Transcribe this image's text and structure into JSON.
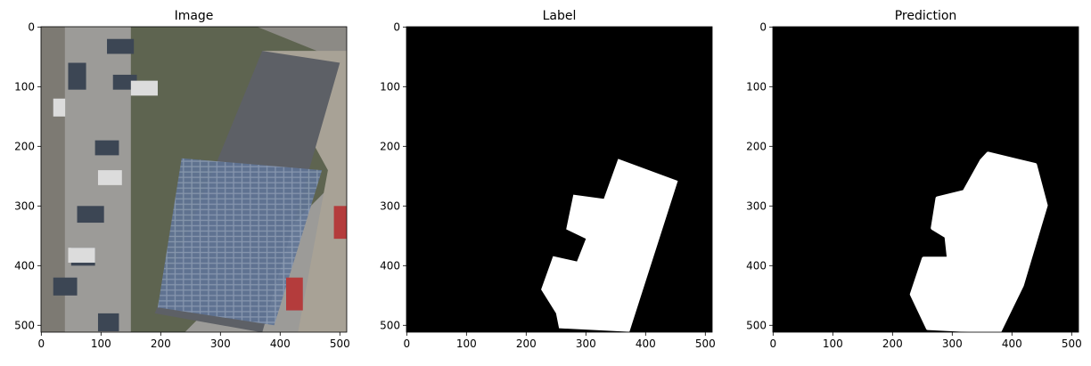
{
  "chart_data": [
    {
      "type": "image",
      "title": "Image",
      "xlim": [
        -0.5,
        511.5
      ],
      "ylim": [
        511.5,
        -0.5
      ],
      "xticks": [
        0,
        100,
        200,
        300,
        400,
        500
      ],
      "yticks": [
        0,
        100,
        200,
        300,
        400,
        500
      ]
    },
    {
      "type": "image",
      "title": "Label",
      "xlim": [
        -0.5,
        511.5
      ],
      "ylim": [
        511.5,
        -0.5
      ],
      "xticks": [
        0,
        100,
        200,
        300,
        400,
        500
      ],
      "yticks": [
        0,
        100,
        200,
        300,
        400,
        500
      ]
    },
    {
      "type": "image",
      "title": "Prediction",
      "xlim": [
        -0.5,
        511.5
      ],
      "ylim": [
        511.5,
        -0.5
      ],
      "xticks": [
        0,
        100,
        200,
        300,
        400,
        500
      ],
      "yticks": [
        0,
        100,
        200,
        300,
        400,
        500
      ]
    }
  ]
}
